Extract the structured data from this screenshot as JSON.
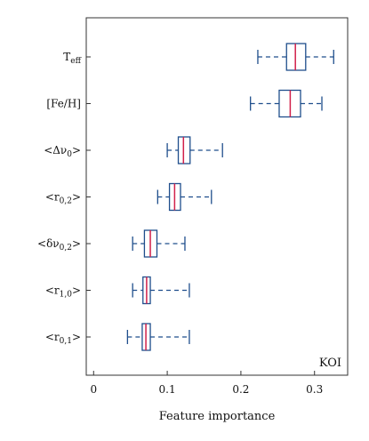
{
  "chart_data": {
    "type": "boxplot",
    "orientation": "horizontal",
    "xlabel": "Feature importance",
    "xlim": [
      -0.01,
      0.345
    ],
    "xticks": [
      0,
      0.1,
      0.2,
      0.3
    ],
    "xtick_labels": [
      "0",
      "0.1",
      "0.2",
      "0.3"
    ],
    "annotation": "KOI",
    "grid": false,
    "colors": {
      "box": "#1f4e8c",
      "median": "#d1204a",
      "axis": "#333333"
    },
    "categories": [
      {
        "id": "teff",
        "label": {
          "base": "T",
          "sub": "eff",
          "post": ""
        },
        "whisker_low": 0.223,
        "q1": 0.262,
        "median": 0.274,
        "q3": 0.288,
        "whisker_high": 0.326
      },
      {
        "id": "feh",
        "label": {
          "base": "[Fe/H]",
          "sub": "",
          "post": ""
        },
        "whisker_low": 0.213,
        "q1": 0.252,
        "median": 0.267,
        "q3": 0.281,
        "whisker_high": 0.31
      },
      {
        "id": "delta-nu0",
        "label": {
          "base": "<Δν",
          "sub": "0",
          "post": ">"
        },
        "whisker_low": 0.1,
        "q1": 0.115,
        "median": 0.122,
        "q3": 0.131,
        "whisker_high": 0.175
      },
      {
        "id": "r02",
        "label": {
          "base": "<r",
          "sub": "0,2",
          "post": ">"
        },
        "whisker_low": 0.087,
        "q1": 0.103,
        "median": 0.11,
        "q3": 0.118,
        "whisker_high": 0.16
      },
      {
        "id": "small-delta-nu02",
        "label": {
          "base": "<δν",
          "sub": "0,2",
          "post": ">"
        },
        "whisker_low": 0.053,
        "q1": 0.069,
        "median": 0.077,
        "q3": 0.086,
        "whisker_high": 0.124
      },
      {
        "id": "r10",
        "label": {
          "base": "<r",
          "sub": "1,0",
          "post": ">"
        },
        "whisker_low": 0.053,
        "q1": 0.067,
        "median": 0.072,
        "q3": 0.077,
        "whisker_high": 0.13
      },
      {
        "id": "r01",
        "label": {
          "base": "<r",
          "sub": "0,1",
          "post": ">"
        },
        "whisker_low": 0.046,
        "q1": 0.066,
        "median": 0.071,
        "q3": 0.077,
        "whisker_high": 0.13
      }
    ]
  }
}
